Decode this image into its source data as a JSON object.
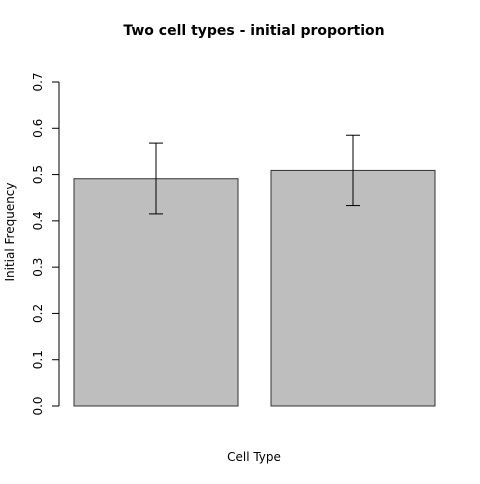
{
  "chart_data": {
    "type": "bar",
    "title": "Two cell types - initial proportion",
    "xlabel": "Cell Type",
    "ylabel": "Initial Frequency",
    "ylim": [
      0,
      0.7
    ],
    "yticks": [
      "0.0",
      "0.1",
      "0.2",
      "0.3",
      "0.4",
      "0.5",
      "0.6",
      "0.7"
    ],
    "categories": [
      "",
      ""
    ],
    "values": [
      0.491,
      0.509
    ],
    "error_bars": [
      {
        "low": 0.415,
        "high": 0.568
      },
      {
        "low": 0.433,
        "high": 0.585
      }
    ],
    "bar_color": "#bebebe",
    "grid": false,
    "legend": "none"
  }
}
